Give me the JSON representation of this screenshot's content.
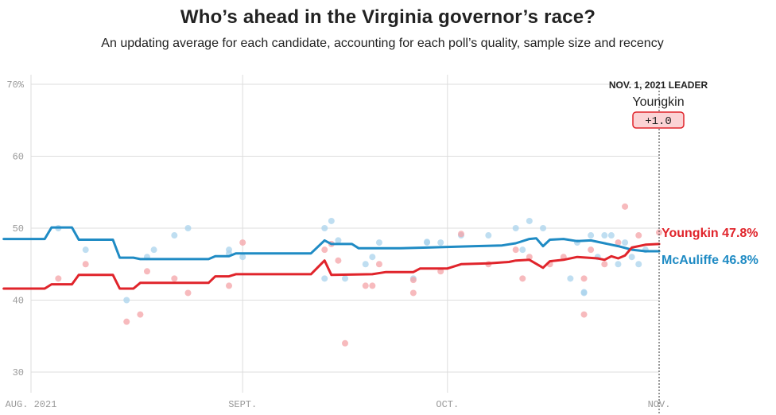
{
  "header": {
    "title": "Who’s ahead in the Virginia governor’s race?",
    "subtitle": "An updating average for each candidate, accounting for each poll’s quality, sample size and recency"
  },
  "colors": {
    "youngkin": "#e0242b",
    "mcauliffe": "#1f8bc4",
    "youngkin_dot": "#f4a3a7",
    "mcauliffe_dot": "#a9d3ec",
    "grid": "#dddddd",
    "leader_fill": "#fbd3d5"
  },
  "leader": {
    "date_label": "NOV. 1, 2021 LEADER",
    "name": "Youngkin",
    "margin": "+1.0"
  },
  "chart_data": {
    "type": "line",
    "title": "Who’s ahead in the Virginia governor’s race?",
    "xlabel": "",
    "ylabel": "",
    "ylim": [
      28,
      70
    ],
    "yticks": [
      {
        "value": 70,
        "label": "70%"
      },
      {
        "value": 60,
        "label": "60"
      },
      {
        "value": 50,
        "label": "50"
      },
      {
        "value": 40,
        "label": "40"
      },
      {
        "value": 30,
        "label": "30"
      }
    ],
    "xlim": [
      "2021-08-01",
      "2021-11-01"
    ],
    "xticks": [
      {
        "date": "2021-08-01",
        "label": "AUG. 2021"
      },
      {
        "date": "2021-09-01",
        "label": "SEPT."
      },
      {
        "date": "2021-10-01",
        "label": "OCT."
      },
      {
        "date": "2021-11-01",
        "label": "NOV."
      }
    ],
    "grid": true,
    "series": [
      {
        "name": "McAuliffe",
        "end_label": "McAuliffe 46.8%",
        "line": [
          [
            "2021-07-28",
            48.5
          ],
          [
            "2021-08-03",
            48.5
          ],
          [
            "2021-08-04",
            50.1
          ],
          [
            "2021-08-07",
            50.1
          ],
          [
            "2021-08-08",
            48.4
          ],
          [
            "2021-08-13",
            48.4
          ],
          [
            "2021-08-14",
            45.9
          ],
          [
            "2021-08-16",
            45.9
          ],
          [
            "2021-08-17",
            45.7
          ],
          [
            "2021-08-27",
            45.7
          ],
          [
            "2021-08-28",
            46.1
          ],
          [
            "2021-08-30",
            46.1
          ],
          [
            "2021-08-31",
            46.5
          ],
          [
            "2021-09-11",
            46.5
          ],
          [
            "2021-09-13",
            48.3
          ],
          [
            "2021-09-14",
            47.8
          ],
          [
            "2021-09-17",
            47.8
          ],
          [
            "2021-09-18",
            47.2
          ],
          [
            "2021-09-22",
            47.2
          ],
          [
            "2021-09-24",
            47.2
          ],
          [
            "2021-09-28",
            47.3
          ],
          [
            "2021-10-05",
            47.5
          ],
          [
            "2021-10-09",
            47.6
          ],
          [
            "2021-10-11",
            47.9
          ],
          [
            "2021-10-13",
            48.5
          ],
          [
            "2021-10-14",
            48.6
          ],
          [
            "2021-10-15",
            47.5
          ],
          [
            "2021-10-16",
            48.4
          ],
          [
            "2021-10-18",
            48.5
          ],
          [
            "2021-10-20",
            48.2
          ],
          [
            "2021-10-22",
            48.3
          ],
          [
            "2021-10-24",
            47.9
          ],
          [
            "2021-10-26",
            47.5
          ],
          [
            "2021-10-28",
            47.0
          ],
          [
            "2021-10-30",
            46.8
          ],
          [
            "2021-11-01",
            46.8
          ]
        ],
        "polls": [
          [
            "2021-08-05",
            50
          ],
          [
            "2021-08-09",
            47
          ],
          [
            "2021-08-15",
            40
          ],
          [
            "2021-08-18",
            46
          ],
          [
            "2021-08-19",
            47
          ],
          [
            "2021-08-22",
            49
          ],
          [
            "2021-08-24",
            50
          ],
          [
            "2021-08-30",
            47
          ],
          [
            "2021-08-30",
            46.5
          ],
          [
            "2021-09-01",
            46
          ],
          [
            "2021-09-13",
            50
          ],
          [
            "2021-09-13",
            43
          ],
          [
            "2021-09-14",
            51
          ],
          [
            "2021-09-15",
            48.3
          ],
          [
            "2021-09-16",
            43
          ],
          [
            "2021-09-19",
            45
          ],
          [
            "2021-09-20",
            46
          ],
          [
            "2021-09-21",
            48
          ],
          [
            "2021-09-26",
            43
          ],
          [
            "2021-09-28",
            48
          ],
          [
            "2021-09-28",
            48.1
          ],
          [
            "2021-09-30",
            48
          ],
          [
            "2021-10-03",
            49
          ],
          [
            "2021-10-07",
            49
          ],
          [
            "2021-10-11",
            50
          ],
          [
            "2021-10-12",
            47
          ],
          [
            "2021-10-13",
            51
          ],
          [
            "2021-10-15",
            50
          ],
          [
            "2021-10-19",
            43
          ],
          [
            "2021-10-20",
            48
          ],
          [
            "2021-10-21",
            41
          ],
          [
            "2021-10-21",
            41.1
          ],
          [
            "2021-10-22",
            49
          ],
          [
            "2021-10-23",
            46
          ],
          [
            "2021-10-24",
            49
          ],
          [
            "2021-10-25",
            49
          ],
          [
            "2021-10-26",
            45
          ],
          [
            "2021-10-27",
            48
          ],
          [
            "2021-10-28",
            46
          ],
          [
            "2021-10-29",
            45
          ],
          [
            "2021-10-30",
            47
          ]
        ]
      },
      {
        "name": "Youngkin",
        "end_label": "Youngkin 47.8%",
        "line": [
          [
            "2021-07-28",
            41.6
          ],
          [
            "2021-08-03",
            41.6
          ],
          [
            "2021-08-04",
            42.2
          ],
          [
            "2021-08-07",
            42.2
          ],
          [
            "2021-08-08",
            43.5
          ],
          [
            "2021-08-13",
            43.5
          ],
          [
            "2021-08-14",
            41.6
          ],
          [
            "2021-08-16",
            41.6
          ],
          [
            "2021-08-17",
            42.4
          ],
          [
            "2021-08-27",
            42.4
          ],
          [
            "2021-08-28",
            43.3
          ],
          [
            "2021-08-30",
            43.3
          ],
          [
            "2021-08-31",
            43.6
          ],
          [
            "2021-09-11",
            43.6
          ],
          [
            "2021-09-13",
            45.5
          ],
          [
            "2021-09-14",
            43.5
          ],
          [
            "2021-09-20",
            43.6
          ],
          [
            "2021-09-22",
            43.9
          ],
          [
            "2021-09-26",
            43.9
          ],
          [
            "2021-09-27",
            44.4
          ],
          [
            "2021-10-01",
            44.4
          ],
          [
            "2021-10-03",
            45.0
          ],
          [
            "2021-10-07",
            45.1
          ],
          [
            "2021-10-10",
            45.3
          ],
          [
            "2021-10-11",
            45.5
          ],
          [
            "2021-10-13",
            45.6
          ],
          [
            "2021-10-15",
            44.5
          ],
          [
            "2021-10-16",
            45.4
          ],
          [
            "2021-10-18",
            45.6
          ],
          [
            "2021-10-20",
            46.0
          ],
          [
            "2021-10-23",
            45.8
          ],
          [
            "2021-10-24",
            45.6
          ],
          [
            "2021-10-25",
            46.1
          ],
          [
            "2021-10-26",
            45.8
          ],
          [
            "2021-10-27",
            46.2
          ],
          [
            "2021-10-28",
            47.3
          ],
          [
            "2021-10-30",
            47.7
          ],
          [
            "2021-11-01",
            47.8
          ]
        ],
        "polls": [
          [
            "2021-08-05",
            43
          ],
          [
            "2021-08-09",
            45
          ],
          [
            "2021-08-15",
            37
          ],
          [
            "2021-08-17",
            38
          ],
          [
            "2021-08-18",
            44
          ],
          [
            "2021-08-22",
            43
          ],
          [
            "2021-08-24",
            41
          ],
          [
            "2021-08-30",
            42
          ],
          [
            "2021-09-01",
            48
          ],
          [
            "2021-09-13",
            47
          ],
          [
            "2021-09-14",
            47.8
          ],
          [
            "2021-09-15",
            45.5
          ],
          [
            "2021-09-16",
            34
          ],
          [
            "2021-09-19",
            42
          ],
          [
            "2021-09-20",
            42
          ],
          [
            "2021-09-21",
            45
          ],
          [
            "2021-09-26",
            41
          ],
          [
            "2021-09-26",
            42.8
          ],
          [
            "2021-09-30",
            44
          ],
          [
            "2021-10-03",
            49.2
          ],
          [
            "2021-10-07",
            45
          ],
          [
            "2021-10-11",
            47
          ],
          [
            "2021-10-12",
            43
          ],
          [
            "2021-10-13",
            46
          ],
          [
            "2021-10-16",
            45
          ],
          [
            "2021-10-18",
            46
          ],
          [
            "2021-10-21",
            38
          ],
          [
            "2021-10-21",
            43
          ],
          [
            "2021-10-22",
            47
          ],
          [
            "2021-10-24",
            45
          ],
          [
            "2021-10-26",
            48
          ],
          [
            "2021-10-27",
            53
          ],
          [
            "2021-10-29",
            49
          ],
          [
            "2021-11-01",
            49.4
          ]
        ]
      }
    ]
  }
}
